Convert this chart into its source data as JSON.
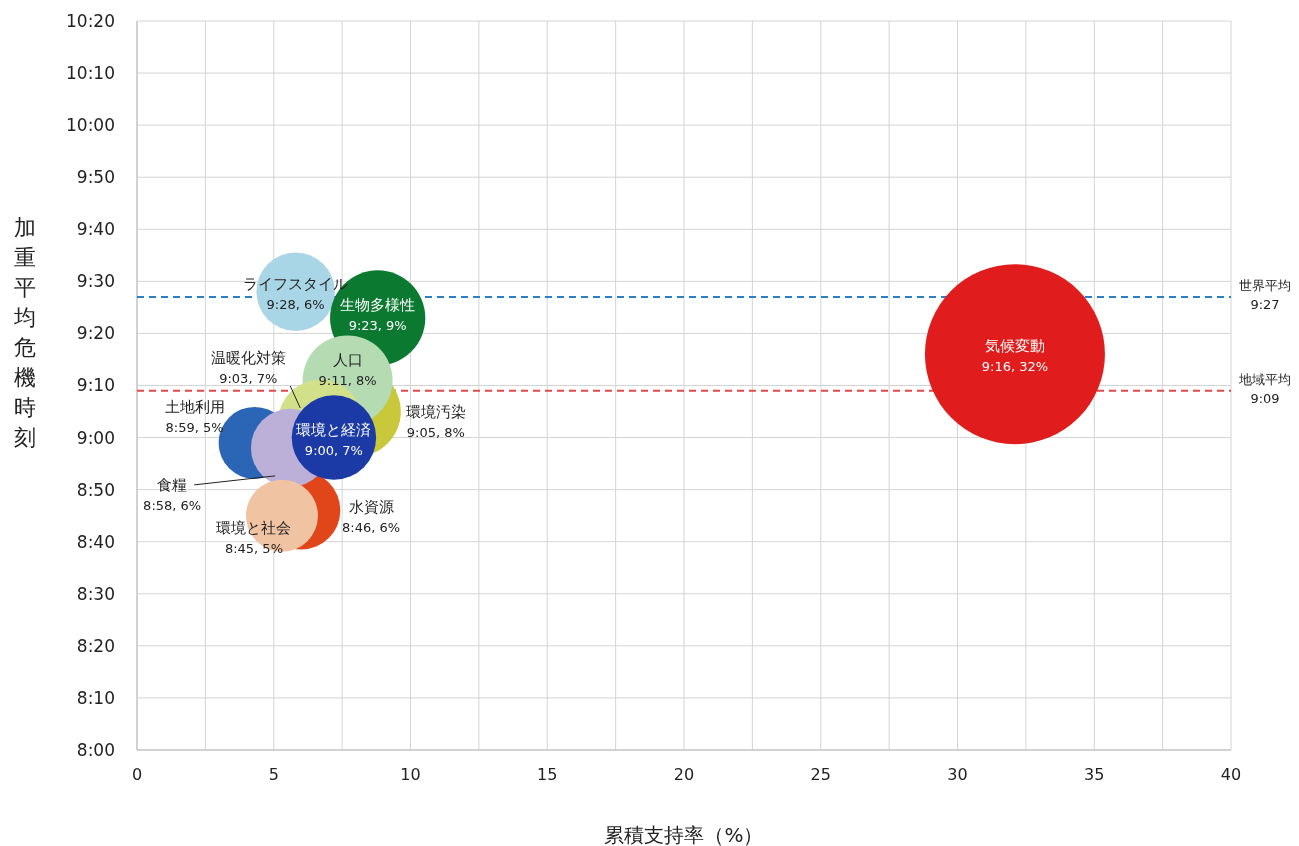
{
  "chart_data": {
    "type": "bubble",
    "xlabel": "累積支持率（%）",
    "ylabel": "加重平均危機時刻",
    "xlim": [
      0,
      40
    ],
    "ylim": [
      8,
      10.3333
    ],
    "xticks": [
      0,
      {
        "value": 2.5,
        "label": null
      },
      5,
      {
        "value": 7.5,
        "label": null
      },
      10,
      {
        "value": 12.5,
        "label": null
      },
      15,
      {
        "value": 17.5,
        "label": null
      },
      20,
      {
        "value": 22.5,
        "label": null
      },
      25,
      {
        "value": 27.5,
        "label": null
      },
      30,
      {
        "value": 32.5,
        "label": null
      },
      35,
      {
        "value": 37.5,
        "label": null
      },
      40
    ],
    "yticks": [
      {
        "value": 8,
        "label": "8:00"
      },
      {
        "value": 8.1667,
        "label": "8:10"
      },
      {
        "value": 8.3333,
        "label": "8:20"
      },
      {
        "value": 8.5,
        "label": "8:30"
      },
      {
        "value": 8.6667,
        "label": "8:40"
      },
      {
        "value": 8.8333,
        "label": "8:50"
      },
      {
        "value": 9,
        "label": "9:00"
      },
      {
        "value": 9.1667,
        "label": "9:10"
      },
      {
        "value": 9.3333,
        "label": "9:20"
      },
      {
        "value": 9.5,
        "label": "9:30"
      },
      {
        "value": 9.6667,
        "label": "9:40"
      },
      {
        "value": 9.8333,
        "label": "9:50"
      },
      {
        "value": 10,
        "label": "10:00"
      },
      {
        "value": 10.1667,
        "label": "10:10"
      },
      {
        "value": 10.3333,
        "label": "10:20"
      }
    ],
    "grid": true,
    "series": [
      {
        "name": "気候変動",
        "color": "#e01c1c",
        "x": [
          32.1
        ],
        "values": [
          9.267
        ],
        "sizes": [
          1
        ],
        "value_labels": [
          "9:16, 32%"
        ]
      },
      {
        "name": "ライフスタイル",
        "color": "#a9d6e6",
        "x": [
          5.8
        ],
        "values": [
          9.467
        ],
        "sizes": [
          0.19
        ],
        "value_labels": [
          "9:28, 6%"
        ]
      },
      {
        "name": "生物多様性",
        "color": "#0b7a30",
        "x": [
          8.8
        ],
        "values": [
          9.383
        ],
        "sizes": [
          0.28
        ],
        "value_labels": [
          "9:23, 9%"
        ]
      },
      {
        "name": "環境汚染",
        "color": "#c9c83a",
        "x": [
          8.0
        ],
        "values": [
          9.083
        ],
        "sizes": [
          0.25
        ],
        "value_labels": [
          "9:05, 8%"
        ]
      },
      {
        "name": "人口",
        "color": "#b5dbb3",
        "x": [
          7.7
        ],
        "values": [
          9.183
        ],
        "sizes": [
          0.25
        ],
        "value_labels": [
          "9:11, 8%"
        ]
      },
      {
        "name": "温暖化対策",
        "color": "#d3e08a",
        "x": [
          6.7
        ],
        "values": [
          9.05
        ],
        "sizes": [
          0.22
        ],
        "value_labels": [
          "9:03, 7%"
        ]
      },
      {
        "name": "土地利用",
        "color": "#2b65b5",
        "x": [
          4.3
        ],
        "values": [
          8.983
        ],
        "sizes": [
          0.16
        ],
        "value_labels": [
          "8:59, 5%"
        ]
      },
      {
        "name": "水資源",
        "color": "#e0461a",
        "x": [
          6.0
        ],
        "values": [
          8.767
        ],
        "sizes": [
          0.19
        ],
        "value_labels": [
          "8:46, 6%"
        ]
      },
      {
        "name": "食糧",
        "color": "#bcb0d8",
        "x": [
          5.6
        ],
        "values": [
          8.967
        ],
        "sizes": [
          0.19
        ],
        "value_labels": [
          "8:58, 6%"
        ]
      },
      {
        "name": "環境と社会",
        "color": "#f0c3a3",
        "x": [
          5.3
        ],
        "values": [
          8.75
        ],
        "sizes": [
          0.16
        ],
        "value_labels": [
          "8:45, 5%"
        ]
      },
      {
        "name": "環境と経済",
        "color": "#1c3aa6",
        "x": [
          7.2
        ],
        "values": [
          9.0
        ],
        "sizes": [
          0.22
        ],
        "value_labels": [
          "9:00, 7%"
        ]
      }
    ],
    "ref_lines": [
      {
        "axis": "y",
        "value": 9.45,
        "label": "世界平均\n9:27",
        "color": "#2a7fc8",
        "line_style": "dashed"
      },
      {
        "axis": "y",
        "value": 9.15,
        "label": "地域平均\n9:09",
        "color": "#e04a4a",
        "line_style": "dashed"
      }
    ]
  }
}
